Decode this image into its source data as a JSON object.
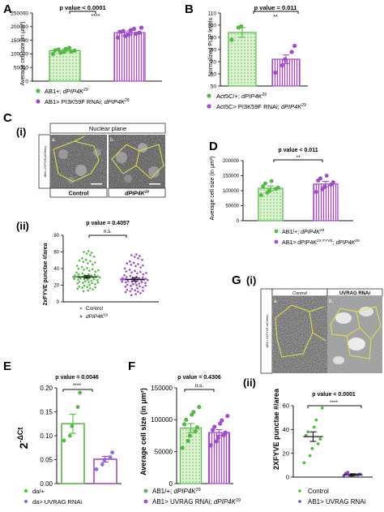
{
  "colors": {
    "green": "#56b947",
    "green_light": "#d9f0cf",
    "purple": "#a14bc6",
    "purple_light": "#ead3f3",
    "yellow_outline": "#e5e24a"
  },
  "panels": {
    "A": {
      "label": "A",
      "pvalue": "p value < 0.0001",
      "stars": "****",
      "ylabel": "Average cell size (in μm²)",
      "ticks": [
        "0",
        "50000",
        "100000",
        "150000",
        "200000",
        "250000"
      ],
      "legend": [
        {
          "text": "AB1+; ",
          "italic": "dPIP4K",
          "sup": "29"
        },
        {
          "text": "AB1> PI3K59F RNAi; ",
          "italic": "dPIP4K",
          "sup": "29"
        }
      ]
    },
    "B": {
      "label": "B",
      "pvalue": "p value = 0.011",
      "stars": "**",
      "ylabel": "Normalized PI3P levels",
      "ticks": [
        "50",
        "60",
        "70",
        "80",
        "90",
        "100",
        "110"
      ],
      "legend": [
        {
          "text": "Act5C/+; ",
          "italic": "dPIP4K",
          "sup": "29"
        },
        {
          "text": "Act5C> PI3K59F RNAi; ",
          "italic": "dPIP4K",
          "sup": "29"
        }
      ]
    },
    "C": {
      "label": "C",
      "sub_i": "(i)",
      "sub_ii": "(ii)",
      "plane_title": "Nuclear plane",
      "side_label": "AB1> 2XFYVE-mCherry",
      "img_a": "a.",
      "img_b": "b.",
      "cap_control": "Control",
      "cap_mutant": "dPIP4K",
      "cap_mutant_sup": "29",
      "pvalue": "p value = 0.4057",
      "stars": "n.s.",
      "ylabel": "2xFYVE punctae #/area",
      "ticks": [
        "0",
        "20",
        "40",
        "60",
        "80"
      ],
      "legend": [
        {
          "text": "Control",
          "italic": "",
          "sup": ""
        },
        {
          "text": "",
          "italic": "dPIP4K",
          "sup": "29"
        }
      ]
    },
    "D": {
      "label": "D",
      "pvalue": "p value < 0.011",
      "stars": "**",
      "ylabel": "Average cell size (in μm²)",
      "ticks": [
        "0",
        "50000",
        "100000",
        "150000",
        "200000"
      ],
      "legend": [
        {
          "text": "AB1/+; ",
          "italic": "dPIP4K",
          "sup": "29"
        },
        {
          "text": "AB1> dPIP4K",
          "sup1": "2X FYVE",
          "text2": "; ",
          "italic": "dPIP4K",
          "sup": "29"
        }
      ]
    },
    "E": {
      "label": "E",
      "pvalue": "p value = 0.0046",
      "stars": "****",
      "ylabel_base": "2",
      "ylabel_sup": "-ΔCt",
      "ticks": [
        "0.00",
        "0.05",
        "0.10",
        "0.15",
        "0.20"
      ],
      "legend": [
        {
          "text": "da/+",
          "italic": "",
          "sup": ""
        },
        {
          "text": "da> UVRAG RNAi",
          "italic": "",
          "sup": ""
        }
      ]
    },
    "F": {
      "label": "F",
      "pvalue": "p value = 0.4306",
      "stars": "n.s.",
      "ylabel": "Average cell size (in μm²)",
      "ticks": [
        "0",
        "50000",
        "100000",
        "150000"
      ],
      "legend": [
        {
          "text": "AB1/+; ",
          "italic": "dPIP4K",
          "sup": "29"
        },
        {
          "text": "AB1> UVRAG RNAi; ",
          "italic": "dPIP4K",
          "sup": "29"
        }
      ]
    },
    "G": {
      "label": "G",
      "sub_i": "(i)",
      "sub_ii": "(ii)",
      "side_label": "AB1> 2XFYVE-mCherry",
      "img_control": "Control",
      "img_rnai": "UVRAG RNAi",
      "img_a": "a.",
      "img_b": "b.",
      "pvalue": "p value < 0.0001",
      "stars": "****",
      "ylabel": "2XFYVE punctae #/area",
      "ticks": [
        "0",
        "20",
        "40",
        "60"
      ],
      "legend": [
        {
          "text": "Control",
          "italic": "",
          "sup": ""
        },
        {
          "text": "AB1> UVRAG RNAi",
          "italic": "",
          "sup": ""
        }
      ]
    }
  },
  "chart_data": [
    {
      "id": "A",
      "type": "bar",
      "categories": [
        "AB1+; dPIP4K29",
        "AB1> PI3K59F RNAi; dPIP4K29"
      ],
      "values": [
        112000,
        178000
      ],
      "errors": [
        5000,
        6000
      ],
      "points": [
        [
          100000,
          104000,
          107000,
          109000,
          112000,
          113000,
          116000,
          118000,
          122000
        ],
        [
          160000,
          166000,
          170000,
          174000,
          178000,
          181000,
          184000,
          187000,
          192000,
          196000
        ]
      ],
      "ylabel": "Average cell size (in μm²)",
      "ylim": [
        0,
        250000
      ]
    },
    {
      "id": "B",
      "type": "bar",
      "categories": [
        "Act5C/+; dPIP4K29",
        "Act5C> PI3K59F RNAi; dPIP4K29"
      ],
      "values": [
        94,
        72
      ],
      "errors": [
        4,
        3.5
      ],
      "points": [
        [
          88,
          98,
          99
        ],
        [
          61,
          67,
          72,
          78,
          83
        ]
      ],
      "ylabel": "Normalized PI3P levels",
      "ylim": [
        50,
        110
      ]
    },
    {
      "id": "C-ii",
      "type": "scatter",
      "categories": [
        "Control",
        "dPIP4K29"
      ],
      "values": [
        30,
        27
      ],
      "errors": [
        1.5,
        2
      ],
      "spread": [
        [
          8,
          62
        ],
        [
          3,
          58
        ]
      ],
      "ylabel": "2xFYVE punctae #/area",
      "ylim": [
        0,
        80
      ]
    },
    {
      "id": "D",
      "type": "bar",
      "categories": [
        "AB1/+; dPIP4K29",
        "AB1> dPIP4K2X FYVE; dPIP4K29"
      ],
      "values": [
        108000,
        122000
      ],
      "errors": [
        8000,
        9000
      ],
      "points": [
        [
          85000,
          93000,
          100000,
          106000,
          110000,
          115000,
          124000,
          132000
        ],
        [
          96000,
          105000,
          113000,
          120000,
          128000,
          134000,
          141000,
          150000
        ]
      ],
      "ylabel": "Average cell size (in μm²)",
      "ylim": [
        0,
        200000
      ]
    },
    {
      "id": "E",
      "type": "bar",
      "categories": [
        "da/+",
        "da> UVRAG RNAi"
      ],
      "values": [
        0.125,
        0.051
      ],
      "errors": [
        0.02,
        0.006
      ],
      "points": [
        [
          0.09,
          0.1,
          0.12,
          0.16,
          0.19
        ],
        [
          0.03,
          0.04,
          0.05,
          0.055,
          0.065
        ]
      ],
      "ylabel": "2^-ΔCt",
      "ylim": [
        0,
        0.2
      ]
    },
    {
      "id": "F",
      "type": "bar",
      "categories": [
        "AB1/+; dPIP4K29",
        "AB1> UVRAG RNAi; dPIP4K29"
      ],
      "values": [
        87000,
        80000
      ],
      "errors": [
        7000,
        4500
      ],
      "points": [
        [
          56000,
          67000,
          75000,
          82000,
          88000,
          93000,
          100000,
          108000,
          112000,
          120000
        ],
        [
          60000,
          66000,
          72000,
          76000,
          80000,
          84000,
          89000,
          94000,
          99000,
          106000
        ]
      ],
      "ylabel": "Average cell size (in μm²)",
      "ylim": [
        0,
        150000
      ]
    },
    {
      "id": "G-ii",
      "type": "scatter",
      "categories": [
        "Control",
        "AB1> UVRAG RNAi"
      ],
      "values": [
        34,
        2
      ],
      "errors": [
        4,
        0.8
      ],
      "points": [
        [
          12,
          18,
          24,
          28,
          32,
          35,
          38,
          42,
          48,
          58
        ],
        [
          0.5,
          1,
          1.5,
          2,
          2.5,
          3,
          4
        ]
      ],
      "ylabel": "2XFYVE punctae #/area",
      "ylim": [
        0,
        60
      ]
    }
  ]
}
